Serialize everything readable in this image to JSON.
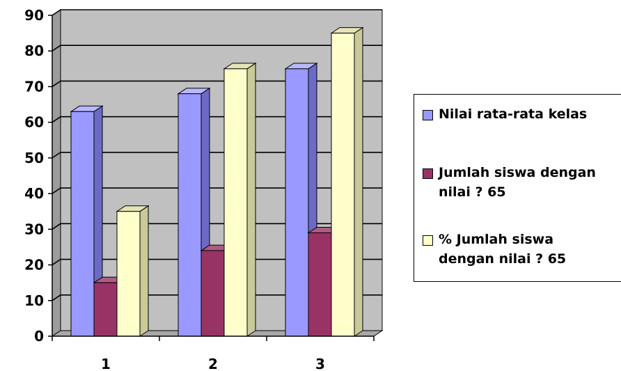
{
  "chart_data": {
    "type": "bar",
    "categories": [
      "1",
      "2",
      "3"
    ],
    "series": [
      {
        "name": "Nilai rata-rata kelas",
        "values": [
          63,
          68,
          75
        ],
        "color": "#9999ff",
        "side_color": "#6b6bc6",
        "top_color": "#b8b8ff"
      },
      {
        "name": "Jumlah siswa dengan\nnilai  ?  65",
        "values": [
          15,
          24,
          29
        ],
        "color": "#993366",
        "side_color": "#6e2449",
        "top_color": "#b05a84"
      },
      {
        "name": "%  Jumlah siswa\ndengan nilai ? 65",
        "values": [
          35,
          75,
          85
        ],
        "color": "#ffffcc",
        "side_color": "#c9c99a",
        "top_color": "#e4e4b4"
      }
    ],
    "y_ticks": [
      0,
      10,
      20,
      30,
      40,
      50,
      60,
      70,
      80,
      90
    ],
    "ylim": [
      0,
      90
    ],
    "grid": true,
    "legend_position": "right",
    "wall_color": "#c0c0c0",
    "title": "",
    "xlabel": "",
    "ylabel": ""
  }
}
